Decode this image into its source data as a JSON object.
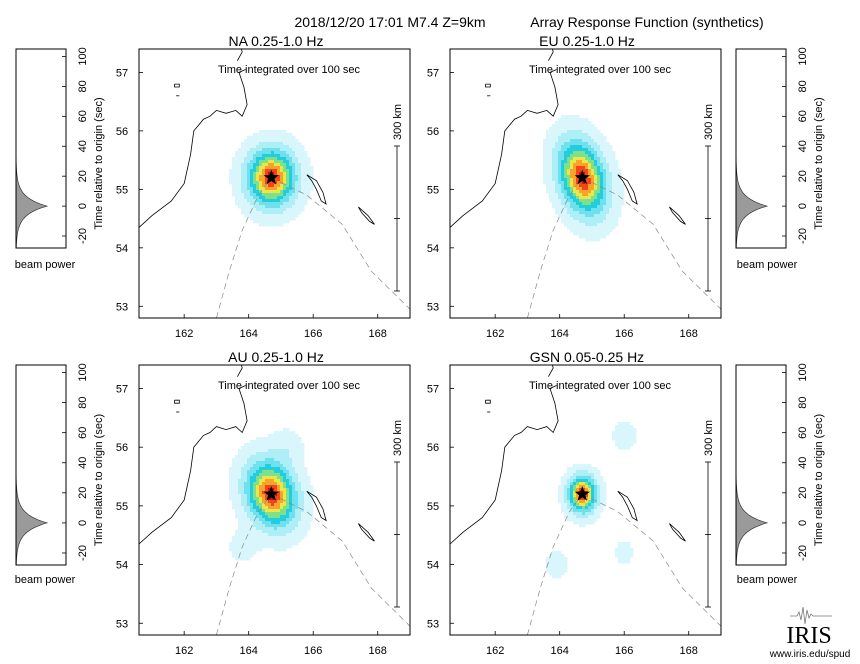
{
  "header": {
    "event": "2018/12/20 17:01  M7.4  Z=9km",
    "subtitle": "Array Response Function (synthetics)"
  },
  "footer": {
    "logo_text": "IRIS",
    "url": "www.iris.edu/spud"
  },
  "chart_data": [
    {
      "type": "heatmap",
      "title": "NA  0.25-1.0 Hz",
      "annotation": "Time integrated over 100 sec",
      "scale_bar": "300 km",
      "x_ticks": [
        162,
        164,
        166,
        168
      ],
      "y_ticks": [
        53,
        54,
        55,
        56,
        57
      ],
      "xlim": [
        160.6,
        169.0
      ],
      "ylim": [
        52.8,
        57.4
      ],
      "epicenter": {
        "lon": 164.7,
        "lat": 55.2
      },
      "blobs": [
        {
          "lon": 164.7,
          "lat": 55.2,
          "sx": 0.95,
          "sy": 0.62,
          "angle": 0,
          "amp": 1.0
        }
      ]
    },
    {
      "type": "heatmap",
      "title": "EU  0.25-1.0 Hz",
      "annotation": "Time integrated over 100 sec",
      "scale_bar": "300 km",
      "x_ticks": [
        162,
        164,
        166,
        168
      ],
      "y_ticks": [
        53,
        54,
        55,
        56,
        57
      ],
      "xlim": [
        160.6,
        169.0
      ],
      "ylim": [
        52.8,
        57.4
      ],
      "epicenter": {
        "lon": 164.7,
        "lat": 55.2
      },
      "blobs": [
        {
          "lon": 164.7,
          "lat": 55.2,
          "sx": 1.0,
          "sy": 0.72,
          "angle": 30,
          "amp": 1.0
        }
      ]
    },
    {
      "type": "heatmap",
      "title": "AU  0.25-1.0 Hz",
      "annotation": "Time integrated over 100 sec",
      "scale_bar": "300 km",
      "x_ticks": [
        162,
        164,
        166,
        168
      ],
      "y_ticks": [
        53,
        54,
        55,
        56,
        57
      ],
      "xlim": [
        160.6,
        169.0
      ],
      "ylim": [
        52.8,
        57.4
      ],
      "epicenter": {
        "lon": 164.7,
        "lat": 55.2
      },
      "blobs": [
        {
          "lon": 164.7,
          "lat": 55.2,
          "sx": 1.0,
          "sy": 0.68,
          "angle": 15,
          "amp": 1.0
        },
        {
          "lon": 165.2,
          "lat": 56.0,
          "sx": 0.6,
          "sy": 0.4,
          "angle": 0,
          "amp": 0.12
        },
        {
          "lon": 163.8,
          "lat": 54.3,
          "sx": 0.6,
          "sy": 0.35,
          "angle": 0,
          "amp": 0.1
        }
      ]
    },
    {
      "type": "heatmap",
      "title": "GSN  0.05-0.25 Hz",
      "annotation": "Time integrated over 100 sec",
      "scale_bar": "300 km",
      "x_ticks": [
        162,
        164,
        166,
        168
      ],
      "y_ticks": [
        53,
        54,
        55,
        56,
        57
      ],
      "xlim": [
        160.6,
        169.0
      ],
      "ylim": [
        52.8,
        57.4
      ],
      "epicenter": {
        "lon": 164.7,
        "lat": 55.2
      },
      "blobs": [
        {
          "lon": 164.7,
          "lat": 55.2,
          "sx": 0.55,
          "sy": 0.4,
          "angle": 0,
          "amp": 1.0
        },
        {
          "lon": 166.0,
          "lat": 56.2,
          "sx": 0.45,
          "sy": 0.3,
          "angle": 0,
          "amp": 0.14
        },
        {
          "lon": 163.9,
          "lat": 54.0,
          "sx": 0.45,
          "sy": 0.3,
          "angle": 0,
          "amp": 0.12
        },
        {
          "lon": 166.0,
          "lat": 54.2,
          "sx": 0.4,
          "sy": 0.3,
          "angle": 0,
          "amp": 0.1
        }
      ]
    }
  ],
  "beam_panels": [
    {
      "ylabel": "Time relative to origin (sec)",
      "xlabel": "beam power",
      "y_ticks": [
        -20,
        0,
        20,
        40,
        60,
        80,
        100
      ],
      "ylim": [
        -28,
        105
      ],
      "peak_time": 0,
      "width_sec": 6
    },
    {
      "ylabel": "Time relative to origin (sec)",
      "xlabel": "beam power",
      "y_ticks": [
        -20,
        0,
        20,
        40,
        60,
        80,
        100
      ],
      "ylim": [
        -28,
        105
      ],
      "peak_time": 0,
      "width_sec": 6
    },
    {
      "ylabel": "Time relative to origin (sec)",
      "xlabel": "beam power",
      "y_ticks": [
        -20,
        0,
        20,
        40,
        60,
        80,
        100
      ],
      "ylim": [
        -28,
        105
      ],
      "peak_time": 0,
      "width_sec": 6
    },
    {
      "ylabel": "Time relative to origin (sec)",
      "xlabel": "beam power",
      "y_ticks": [
        -20,
        0,
        20,
        40,
        60,
        80,
        100
      ],
      "ylim": [
        -28,
        105
      ],
      "peak_time": 0,
      "width_sec": 6
    }
  ]
}
